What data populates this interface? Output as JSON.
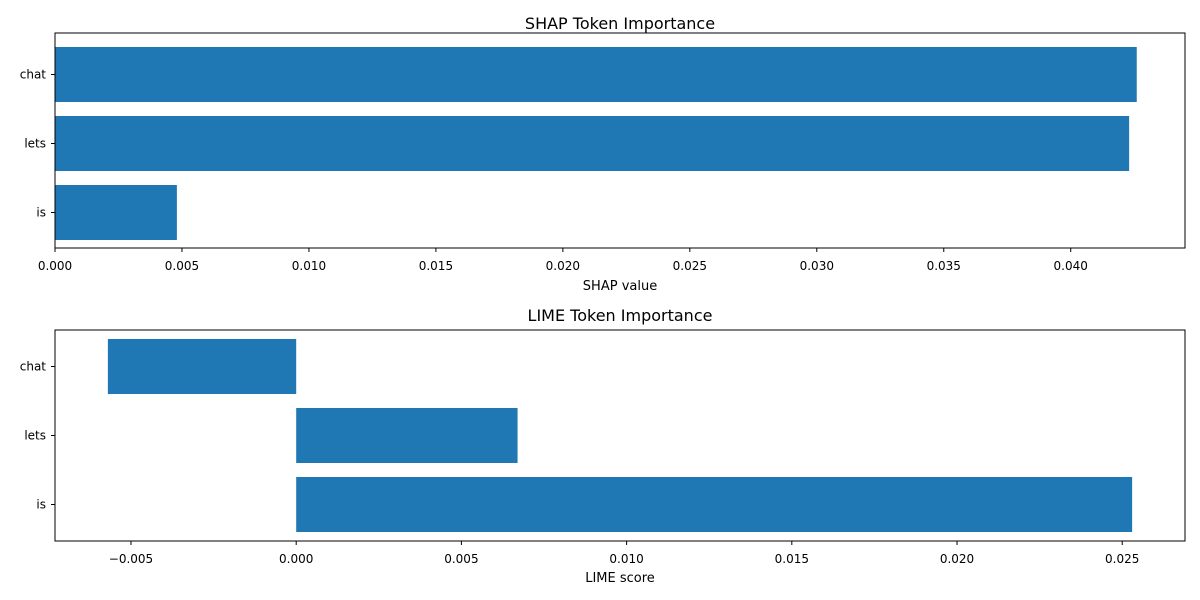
{
  "chart_data": [
    {
      "type": "bar",
      "orientation": "horizontal",
      "title": "SHAP Token Importance",
      "xlabel": "SHAP value",
      "ylabel": "",
      "categories": [
        "chat",
        "lets",
        "is"
      ],
      "values": [
        0.0426,
        0.0423,
        0.0048
      ],
      "xlim": [
        0.0,
        0.0445
      ],
      "xticks": [
        "0.000",
        "0.005",
        "0.010",
        "0.015",
        "0.020",
        "0.025",
        "0.030",
        "0.035",
        "0.040"
      ],
      "grid": false,
      "bar_color": "#1f77b4"
    },
    {
      "type": "bar",
      "orientation": "horizontal",
      "title": "LIME Token Importance",
      "xlabel": "LIME score",
      "ylabel": "",
      "categories": [
        "chat",
        "lets",
        "is"
      ],
      "values": [
        -0.0057,
        0.0067,
        0.0253
      ],
      "xlim": [
        -0.0073,
        0.0269
      ],
      "xticks": [
        "−0.005",
        "0.000",
        "0.005",
        "0.010",
        "0.015",
        "0.020",
        "0.025"
      ],
      "grid": false,
      "bar_color": "#1f77b4"
    }
  ]
}
